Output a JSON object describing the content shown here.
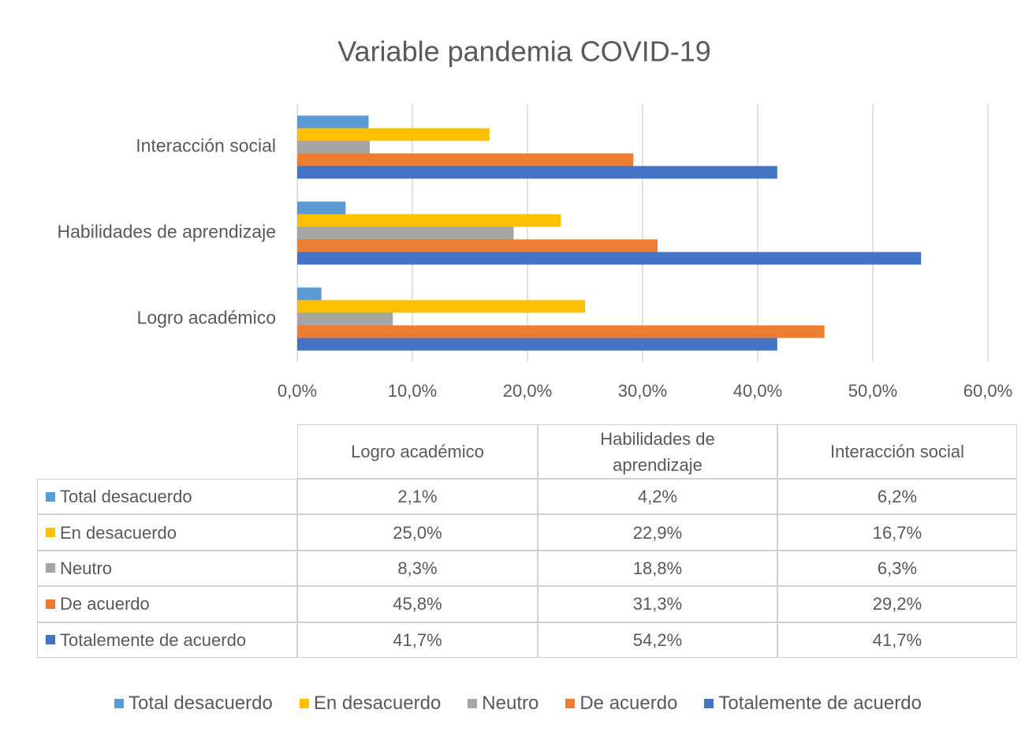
{
  "chart_data": {
    "type": "bar",
    "orientation": "horizontal",
    "title": "Variable pandemia COVID-19",
    "categories": [
      "Logro académico",
      "Habilidades de aprendizaje",
      "Interacción social"
    ],
    "series": [
      {
        "name": "Total desacuerdo",
        "color": "#5b9bd5",
        "values": [
          2.1,
          4.2,
          6.2
        ],
        "value_labels": [
          "2,1%",
          "4,2%",
          "6,2%"
        ]
      },
      {
        "name": "En desacuerdo",
        "color": "#ffc000",
        "values": [
          25.0,
          22.9,
          16.7
        ],
        "value_labels": [
          "25,0%",
          "22,9%",
          "16,7%"
        ]
      },
      {
        "name": "Neutro",
        "color": "#a5a5a5",
        "values": [
          8.3,
          18.8,
          6.3
        ],
        "value_labels": [
          "8,3%",
          "18,8%",
          "6,3%"
        ]
      },
      {
        "name": "De acuerdo",
        "color": "#ed7d31",
        "values": [
          45.8,
          31.3,
          29.2
        ],
        "value_labels": [
          "45,8%",
          "31,3%",
          "29,2%"
        ]
      },
      {
        "name": "Totalemente de acuerdo",
        "color": "#4472c4",
        "values": [
          41.7,
          54.2,
          41.7
        ],
        "value_labels": [
          "41,7%",
          "54,2%",
          "41,7%"
        ]
      }
    ],
    "xlim": [
      0,
      60
    ],
    "xticks": [
      {
        "value": 0,
        "label": "0,0%"
      },
      {
        "value": 10,
        "label": "10,0%"
      },
      {
        "value": 20,
        "label": "20,0%"
      },
      {
        "value": 30,
        "label": "30,0%"
      },
      {
        "value": 40,
        "label": "40,0%"
      },
      {
        "value": 50,
        "label": "50,0%"
      },
      {
        "value": 60,
        "label": "60,0%"
      }
    ],
    "grid": true,
    "legend": "bottom"
  }
}
